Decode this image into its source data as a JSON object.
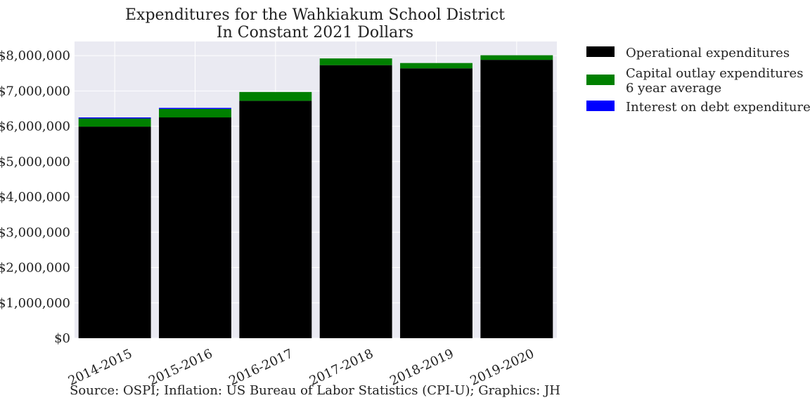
{
  "chart_data": {
    "type": "bar",
    "stacked": true,
    "title": "Expenditures for the Wahkiakum School District",
    "subtitle": "In Constant 2021 Dollars",
    "source": "Source: OSPI; Inflation: US Bureau of Labor Statistics (CPI-U); Graphics: JH",
    "xlabel": "",
    "ylabel": "",
    "ylim": [
      0,
      8400000
    ],
    "yticks": [
      0,
      1000000,
      2000000,
      3000000,
      4000000,
      5000000,
      6000000,
      7000000,
      8000000
    ],
    "ytick_labels": [
      "$0",
      "$1,000,000",
      "$2,000,000",
      "$3,000,000",
      "$4,000,000",
      "$5,000,000",
      "$6,000,000",
      "$7,000,000",
      "$8,000,000"
    ],
    "categories": [
      "2014-2015",
      "2015-2016",
      "2016-2017",
      "2017-2018",
      "2018-2019",
      "2019-2020"
    ],
    "grid": true,
    "legend_position": "outside-right-top",
    "series": [
      {
        "name": "Operational expenditures",
        "color": "#000000",
        "values": [
          5990000,
          6250000,
          6720000,
          7730000,
          7640000,
          7880000
        ]
      },
      {
        "name": "Capital outlay expenditures\n6 year average",
        "color": "#008000",
        "values": [
          230000,
          240000,
          250000,
          190000,
          150000,
          130000
        ]
      },
      {
        "name": "Interest on debt expenditures",
        "color": "#0000ff",
        "values": [
          30000,
          30000,
          0,
          0,
          0,
          0
        ]
      }
    ]
  }
}
